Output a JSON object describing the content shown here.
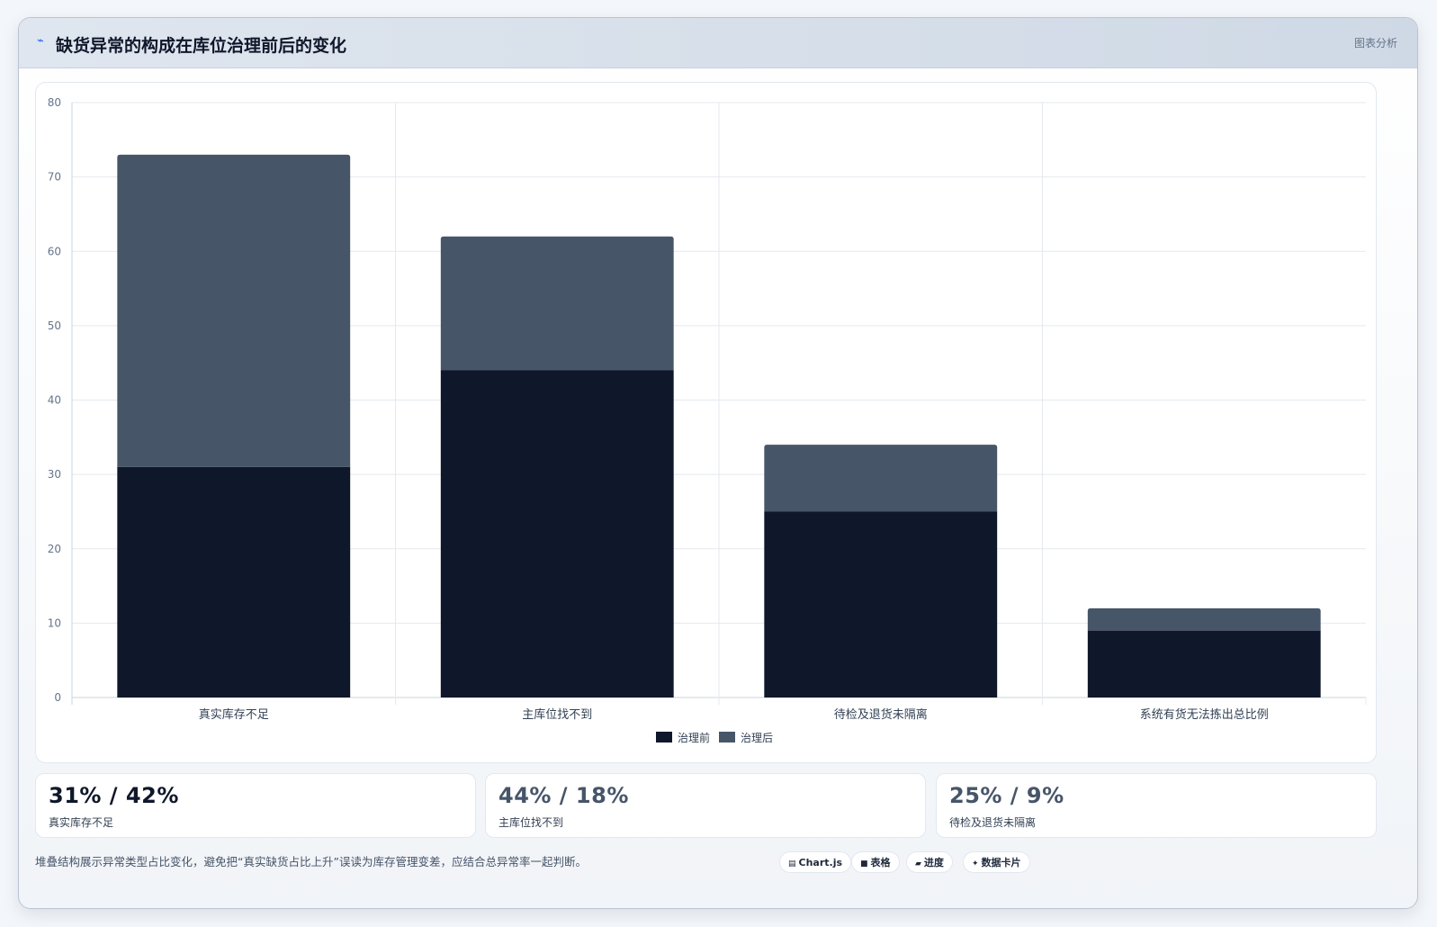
{
  "header": {
    "title": "缺货异常的构成在库位治理前后的变化",
    "tag": "图表分析",
    "icon": "line-chart-icon"
  },
  "chart_data": {
    "type": "bar",
    "stacked": true,
    "categories": [
      "真实库存不足",
      "主库位找不到",
      "待检及退货未隔离",
      "系统有货无法拣出总比例"
    ],
    "series": [
      {
        "name": "治理前",
        "values": [
          31,
          44,
          25,
          9
        ],
        "color": "#0f172a"
      },
      {
        "name": "治理后",
        "values": [
          42,
          18,
          9,
          3
        ],
        "color": "#475569"
      }
    ],
    "ylim": [
      0,
      80
    ],
    "yticks": [
      0,
      10,
      20,
      30,
      40,
      50,
      60,
      70,
      80
    ],
    "grid": true,
    "legend": "bottom-center"
  },
  "stats": [
    {
      "value": "31% / 42%",
      "label": "真实库存不足"
    },
    {
      "value": "44% / 18%",
      "label": "主库位找不到"
    },
    {
      "value": "25% / 9%",
      "label": "待检及退货未隔离"
    }
  ],
  "footer": {
    "note": "堆叠结构展示异常类型占比变化，避免把“真实缺货占比上升”误读为库存管理变差，应结合总异常率一起判断。",
    "chips": [
      {
        "icon": "▤",
        "label": "Chart.js"
      },
      {
        "icon": "■",
        "label": "表格"
      },
      {
        "icon": "▰",
        "label": "进度"
      },
      {
        "icon": "✦",
        "label": "数据卡片"
      }
    ]
  }
}
